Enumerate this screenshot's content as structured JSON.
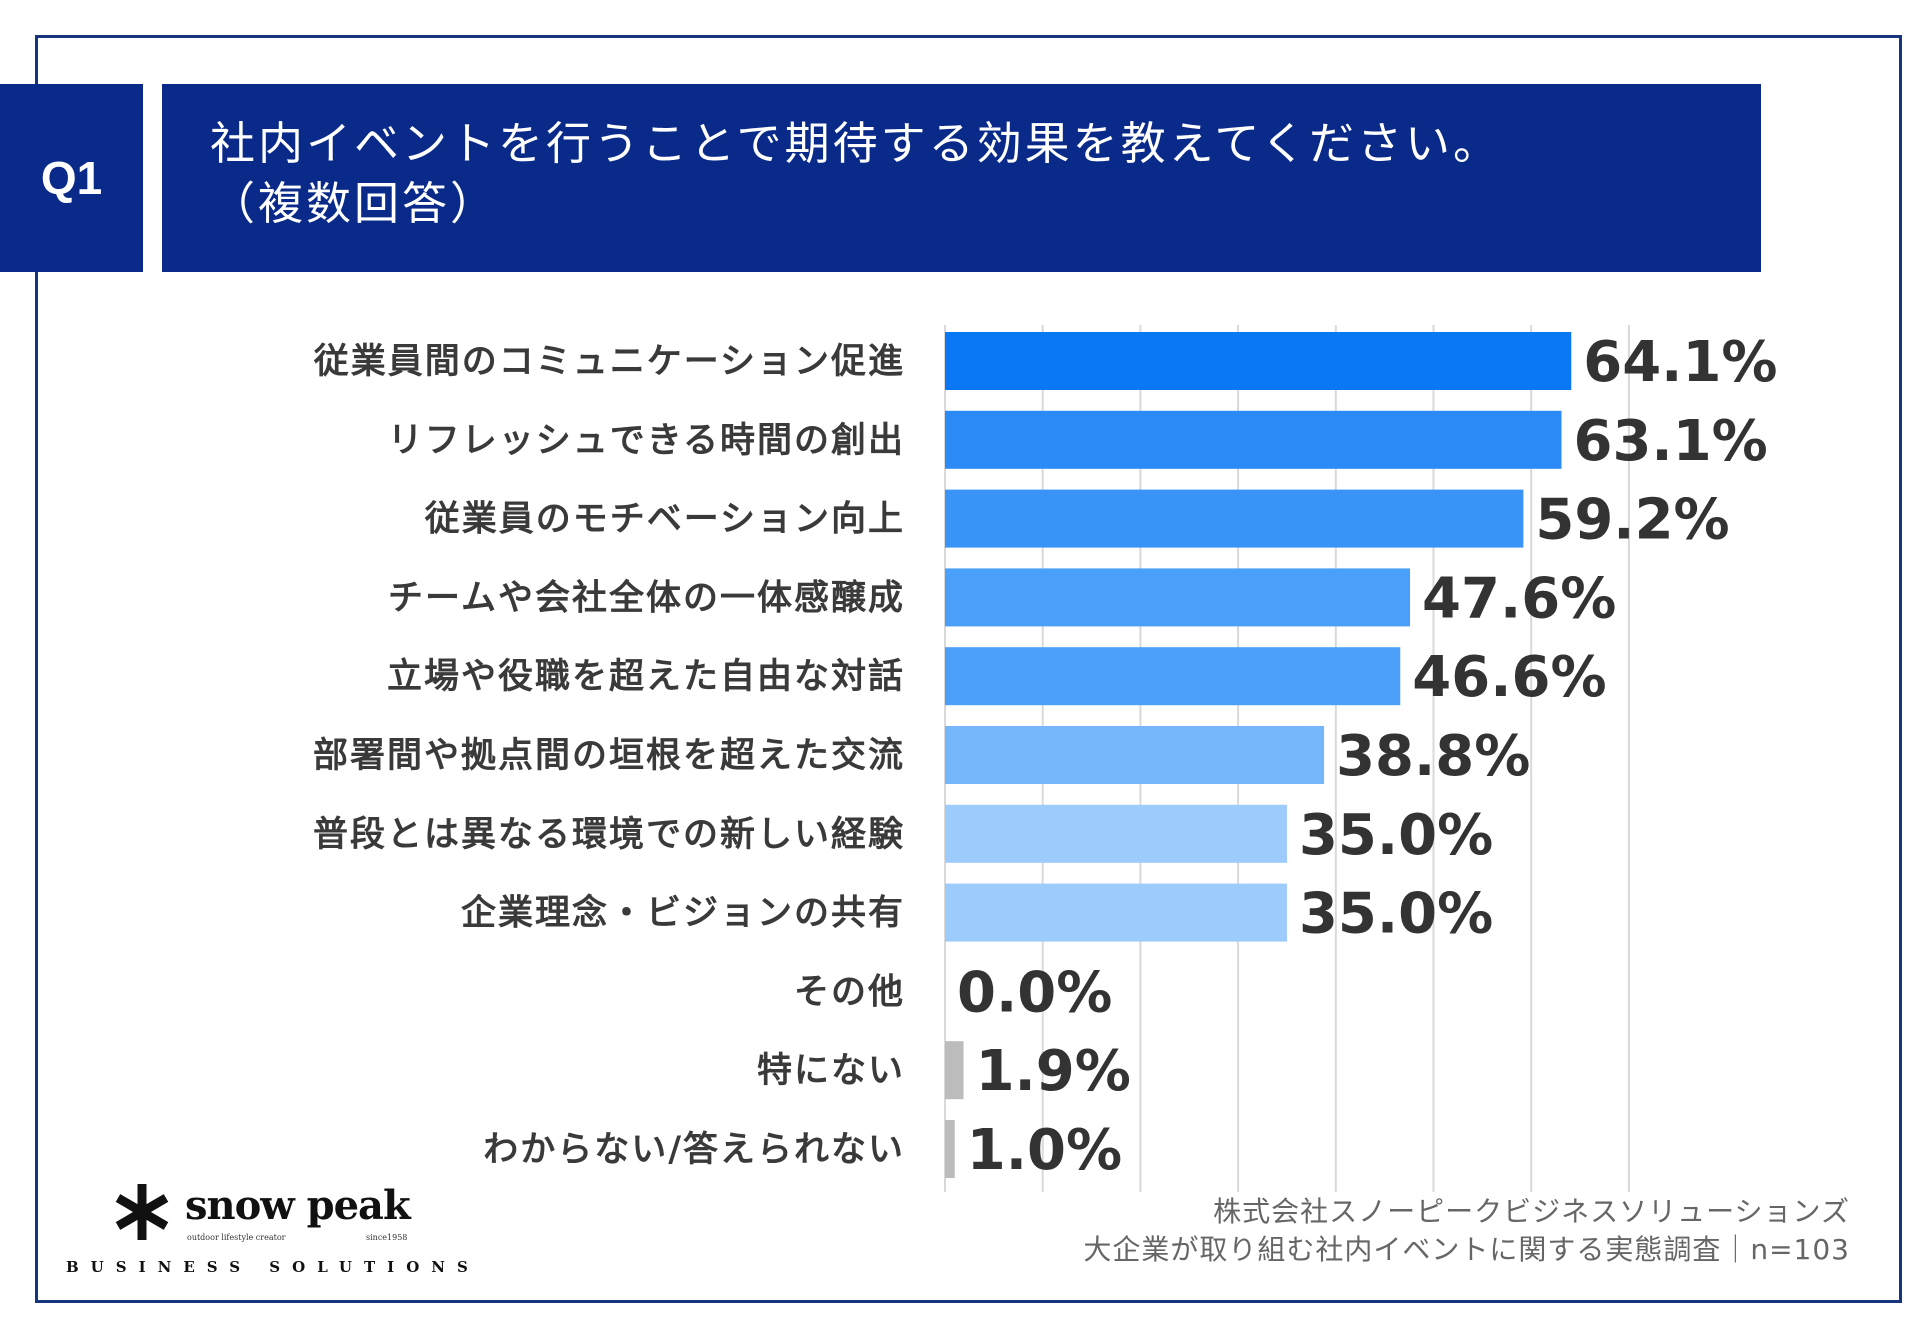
{
  "header": {
    "badge": "Q1",
    "title_line1": "社内イベントを行うことで期待する効果を教えてください。",
    "title_line2": "（複数回答）"
  },
  "chart_data": {
    "type": "bar",
    "orientation": "horizontal",
    "categories": [
      "従業員間のコミュニケーション促進",
      "リフレッシュできる時間の創出",
      "従業員のモチベーション向上",
      "チームや会社全体の一体感醸成",
      "立場や役職を超えた自由な対話",
      "部署間や拠点間の垣根を超えた交流",
      "普段とは異なる環境での新しい経験",
      "企業理念・ビジョンの共有",
      "その他",
      "特にない",
      "わからない/答えられない"
    ],
    "values": [
      64.1,
      63.1,
      59.2,
      47.6,
      46.6,
      38.8,
      35.0,
      35.0,
      0.0,
      1.9,
      1.0
    ],
    "value_labels": [
      "64.1%",
      "63.1%",
      "59.2%",
      "47.6%",
      "46.6%",
      "38.8%",
      "35.0%",
      "35.0%",
      "0.0%",
      "1.9%",
      "1.0%"
    ],
    "bar_colors": [
      "#0a78f5",
      "#2b8af5",
      "#3a93f6",
      "#4aa0f8",
      "#4aa0f8",
      "#75b6fa",
      "#9ccbfc",
      "#9ccbfc",
      "#bcbcbc",
      "#bcbcbc",
      "#bcbcbc"
    ],
    "xlim": [
      0,
      100
    ],
    "grid": true
  },
  "logo": {
    "name": "snow peak",
    "tagline": "outdoor lifestyle creator",
    "since": "since1958",
    "sub": "BUSINESS SOLUTIONS"
  },
  "source": {
    "line1": "株式会社スノーピークビジネスソリューションズ",
    "line2": "大企業が取り組む社内イベントに関する実態調査｜n=103"
  }
}
